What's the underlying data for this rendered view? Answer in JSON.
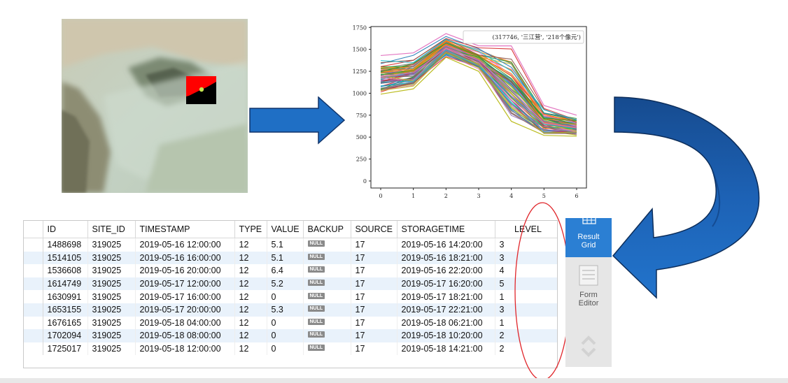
{
  "chart_data": {
    "type": "line",
    "x": [
      0,
      1,
      2,
      3,
      4,
      5,
      6
    ],
    "xticks": [
      "0",
      "1",
      "2",
      "3",
      "4",
      "5",
      "6"
    ],
    "yticks": [
      "0",
      "250",
      "500",
      "750",
      "1000",
      "1250",
      "1500",
      "1750"
    ],
    "ylim": [
      -80,
      1760
    ],
    "xlim": [
      -0.3,
      6.3
    ],
    "legend": "(317746, '三江营', '218个像元')",
    "legend_position": "top-right",
    "series_envelope": {
      "min": [
        990,
        1050,
        1410,
        1250,
        680,
        520,
        510
      ],
      "max": [
        1430,
        1460,
        1680,
        1540,
        1540,
        860,
        750
      ]
    },
    "series_count": 218
  },
  "table": {
    "columns": [
      "ID",
      "SITE_ID",
      "TIMESTAMP",
      "TYPE",
      "VALUE",
      "BACKUP",
      "SOURCE",
      "STORAGETIME",
      "LEVEL"
    ],
    "rows": [
      [
        "1488698",
        "319025",
        "2019-05-16 12:00:00",
        "12",
        "5.1",
        "NULL",
        "17",
        "2019-05-16 14:20:00",
        "3"
      ],
      [
        "1514105",
        "319025",
        "2019-05-16 16:00:00",
        "12",
        "5.1",
        "NULL",
        "17",
        "2019-05-16 18:21:00",
        "3"
      ],
      [
        "1536608",
        "319025",
        "2019-05-16 20:00:00",
        "12",
        "6.4",
        "NULL",
        "17",
        "2019-05-16 22:20:00",
        "4"
      ],
      [
        "1614749",
        "319025",
        "2019-05-17 12:00:00",
        "12",
        "5.2",
        "NULL",
        "17",
        "2019-05-17 16:20:00",
        "5"
      ],
      [
        "1630991",
        "319025",
        "2019-05-17 16:00:00",
        "12",
        "0",
        "NULL",
        "17",
        "2019-05-17 18:21:00",
        "1"
      ],
      [
        "1653155",
        "319025",
        "2019-05-17 20:00:00",
        "12",
        "5.3",
        "NULL",
        "17",
        "2019-05-17 22:21:00",
        "3"
      ],
      [
        "1676165",
        "319025",
        "2019-05-18 04:00:00",
        "12",
        "0",
        "NULL",
        "17",
        "2019-05-18 06:21:00",
        "1"
      ],
      [
        "1702094",
        "319025",
        "2019-05-18 08:00:00",
        "12",
        "0",
        "NULL",
        "17",
        "2019-05-18 10:20:00",
        "2"
      ],
      [
        "1725017",
        "319025",
        "2019-05-18 12:00:00",
        "12",
        "0",
        "NULL",
        "17",
        "2019-05-18 14:21:00",
        "2"
      ]
    ]
  },
  "side_panel": {
    "result_grid_line1": "Result",
    "result_grid_line2": "Grid",
    "form_editor_line1": "Form",
    "form_editor_line2": "Editor"
  },
  "colors": {
    "arrow_blue": "#1f6fc5",
    "arrow_dark": "#123a73",
    "accent_button": "#2b7fd3",
    "highlight_ellipse": "#e0262b",
    "row_alt": "#e9f2fb"
  }
}
